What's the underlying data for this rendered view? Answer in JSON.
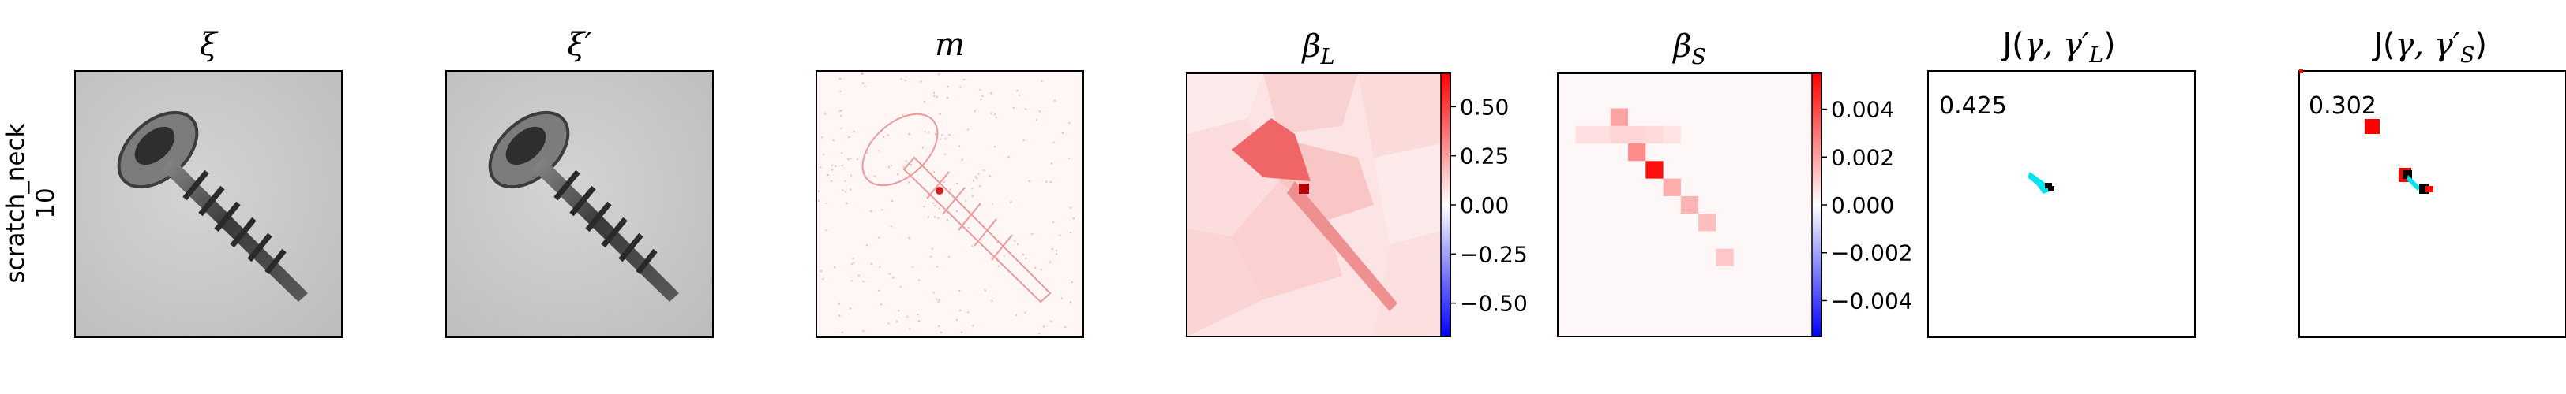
{
  "row_label": {
    "line1": "scratch_neck",
    "line2": "10"
  },
  "panels": [
    {
      "key": "xi",
      "title": "ξ",
      "style": "ital"
    },
    {
      "key": "xi_prime",
      "title": "ξ′",
      "style": "ital"
    },
    {
      "key": "m",
      "title": "m",
      "style": "ital"
    },
    {
      "key": "beta_L",
      "title_main": "β",
      "title_sub": "L",
      "style": "sub"
    },
    {
      "key": "beta_S",
      "title_main": "β",
      "title_sub": "S",
      "style": "sub"
    },
    {
      "key": "J_L",
      "title_pre": "J(",
      "title_mid": "γ, γ′",
      "title_sub": "L",
      "title_post": ")",
      "style": "j"
    },
    {
      "key": "J_S",
      "title_pre": "J(",
      "title_mid": "γ, γ′",
      "title_sub": "S",
      "title_post": ")",
      "style": "j"
    }
  ],
  "colorbars": {
    "beta_L": {
      "ticks": [
        "0.50",
        "0.25",
        "0.00",
        "−0.25",
        "−0.50"
      ],
      "tick_values": [
        0.5,
        0.25,
        0.0,
        -0.25,
        -0.5
      ],
      "vmin": -0.67,
      "vmax": 0.67,
      "cmap": "bwr"
    },
    "beta_S": {
      "ticks": [
        "0.004",
        "0.002",
        "0.000",
        "−0.002",
        "−0.004"
      ],
      "tick_values": [
        0.004,
        0.002,
        0.0,
        -0.002,
        -0.004
      ],
      "vmin": -0.0055,
      "vmax": 0.0055,
      "cmap": "bwr"
    }
  },
  "scores": {
    "J_L": "0.425",
    "J_S": "0.302"
  },
  "colors": {
    "positive": "#ff0000",
    "negative": "#0000ff",
    "neutral": "#ffffff",
    "gamma": "#00e5ee",
    "gamma_prime": "#000000"
  },
  "chart_data": [
    {
      "type": "heatmap",
      "panel": "ξ",
      "content": "grayscale photo of a countersunk screw (input image)"
    },
    {
      "type": "heatmap",
      "panel": "ξ′",
      "content": "grayscale photo of a countersunk screw (perturbed input)"
    },
    {
      "type": "heatmap",
      "panel": "m",
      "content": "sparse red attribution mask following the screw outline"
    },
    {
      "type": "heatmap",
      "panel": "β_L",
      "cmap": "bwr",
      "colorbar_ticks": [
        0.5,
        0.25,
        0.0,
        -0.25,
        -0.5
      ]
    },
    {
      "type": "heatmap",
      "panel": "β_S",
      "cmap": "bwr",
      "colorbar_ticks": [
        0.004,
        0.002,
        0.0,
        -0.002,
        -0.004
      ],
      "grid_cells": [
        {
          "row": 2,
          "col": 3,
          "value": 0.002
        },
        {
          "row": 3,
          "col": 1,
          "value": 0.0007
        },
        {
          "row": 3,
          "col": 2,
          "value": 0.0007
        },
        {
          "row": 3,
          "col": 3,
          "value": 0.0009
        },
        {
          "row": 3,
          "col": 4,
          "value": 0.0009
        },
        {
          "row": 3,
          "col": 5,
          "value": 0.0008
        },
        {
          "row": 3,
          "col": 6,
          "value": 0.0006
        },
        {
          "row": 4,
          "col": 4,
          "value": 0.0025
        },
        {
          "row": 5,
          "col": 5,
          "value": 0.0052
        },
        {
          "row": 6,
          "col": 6,
          "value": 0.0018
        },
        {
          "row": 7,
          "col": 7,
          "value": 0.0016
        },
        {
          "row": 8,
          "col": 8,
          "value": 0.0014
        },
        {
          "row": 10,
          "col": 9,
          "value": 0.0012
        }
      ]
    },
    {
      "type": "scatter",
      "panel": "J(γ, γ′_L)",
      "score": 0.425
    },
    {
      "type": "scatter",
      "panel": "J(γ, γ′_S)",
      "score": 0.302
    }
  ]
}
